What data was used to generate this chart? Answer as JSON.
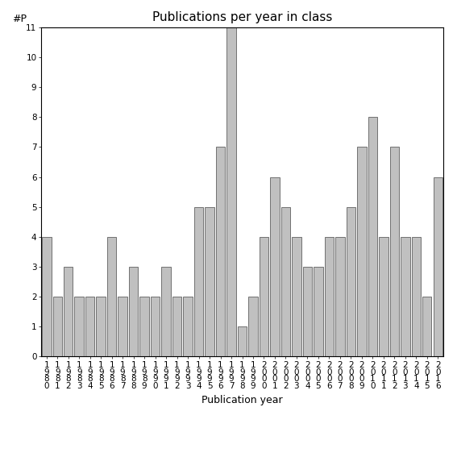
{
  "years": [
    "1980",
    "1981",
    "1982",
    "1983",
    "1984",
    "1985",
    "1986",
    "1987",
    "1988",
    "1989",
    "1990",
    "1991",
    "1992",
    "1993",
    "1994",
    "1995",
    "1996",
    "1997",
    "1998",
    "1999",
    "2000",
    "2001",
    "2002",
    "2003",
    "2004",
    "2005",
    "2006",
    "2007",
    "2008",
    "2009",
    "2010",
    "2011",
    "2012",
    "2013",
    "2014",
    "2015",
    "2016"
  ],
  "values": [
    4,
    2,
    3,
    2,
    2,
    2,
    4,
    2,
    3,
    2,
    2,
    3,
    2,
    2,
    5,
    5,
    7,
    11,
    1,
    2,
    4,
    6,
    5,
    4,
    3,
    3,
    4,
    4,
    5,
    7,
    8,
    4,
    7,
    4,
    4,
    2,
    6
  ],
  "title": "Publications per year in class",
  "xlabel": "Publication year",
  "ylabel": "#P",
  "bar_color": "#c0c0c0",
  "bar_edge_color": "#606060",
  "ylim": [
    0,
    11
  ],
  "yticks": [
    0,
    1,
    2,
    3,
    4,
    5,
    6,
    7,
    8,
    9,
    10,
    11
  ],
  "bg_color": "#ffffff",
  "title_fontsize": 11,
  "label_fontsize": 9,
  "tick_fontsize": 7.5
}
